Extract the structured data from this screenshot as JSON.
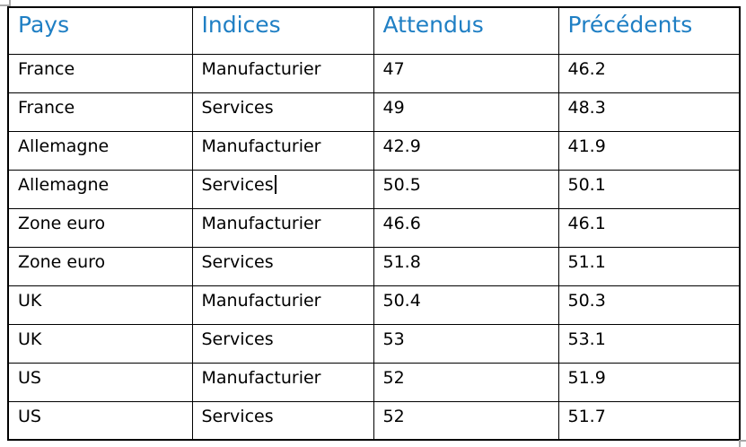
{
  "colors": {
    "page_background": "#ffffff",
    "header_text": "#1f7fc4",
    "body_text": "#000000",
    "grid_border": "#000000",
    "handle_gray": "#a8a8a8"
  },
  "icons": {
    "top_left": "table-move-handle-icon",
    "bottom_right": "table-resize-handle-icon"
  },
  "table": {
    "columns": [
      {
        "label": "Pays"
      },
      {
        "label": "Indices"
      },
      {
        "label": "Attendus"
      },
      {
        "label": "Précédents"
      }
    ],
    "rows": [
      [
        "France",
        "Manufacturier",
        "47",
        "46.2"
      ],
      [
        "France",
        "Services",
        "49",
        "48.3"
      ],
      [
        "Allemagne",
        "Manufacturier",
        "42.9",
        "41.9"
      ],
      [
        "Allemagne",
        "Services",
        "50.5",
        "50.1"
      ],
      [
        "Zone euro",
        "Manufacturier",
        "46.6",
        "46.1"
      ],
      [
        "Zone euro",
        "Services",
        "51.8",
        "51.1"
      ],
      [
        "UK",
        "Manufacturier",
        "50.4",
        "50.3"
      ],
      [
        "UK",
        "Services",
        "53",
        "53.1"
      ],
      [
        "US",
        "Manufacturier",
        "52",
        "51.9"
      ],
      [
        "US",
        "Services",
        "52",
        "51.7"
      ]
    ]
  },
  "ui_state": {
    "text_cursor": {
      "row_index": 3,
      "column_index": 1,
      "after_text": "Services"
    }
  }
}
